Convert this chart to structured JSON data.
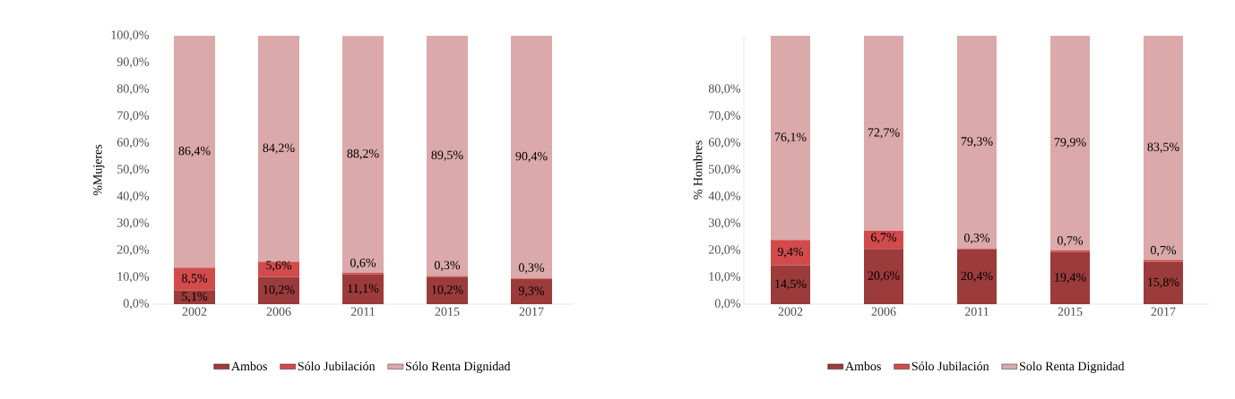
{
  "chart_data": [
    {
      "type": "bar",
      "stacked": true,
      "ylabel": "%Mujeres",
      "categories": [
        "2002",
        "2006",
        "2011",
        "2015",
        "2017"
      ],
      "ylim": [
        0,
        100
      ],
      "yticks": [
        {
          "value": 0,
          "label": "0,0%"
        },
        {
          "value": 10,
          "label": "10,0%"
        },
        {
          "value": 20,
          "label": "20,0%"
        },
        {
          "value": 30,
          "label": "30,0%"
        },
        {
          "value": 40,
          "label": "40,0%"
        },
        {
          "value": 50,
          "label": "50,0%"
        },
        {
          "value": 60,
          "label": "60,0%"
        },
        {
          "value": 70,
          "label": "70,0%"
        },
        {
          "value": 80,
          "label": "80,0%"
        },
        {
          "value": 90,
          "label": "90,0%"
        },
        {
          "value": 100,
          "label": "100,0%"
        }
      ],
      "legend": "bottom",
      "series": [
        {
          "name": "Ambos",
          "color": "#9c3b3b",
          "values": [
            5.1,
            10.2,
            11.1,
            10.2,
            9.3
          ],
          "value_labels": [
            "5,1%",
            "10,2%",
            "11,1%",
            "10,2%",
            "9,3%"
          ]
        },
        {
          "name": "Sólo Jubilación",
          "color": "#d24b4b",
          "values": [
            8.5,
            5.6,
            0.6,
            0.3,
            0.3
          ],
          "value_labels": [
            "8,5%",
            "5,6%",
            "0,6%",
            "0,3%",
            "0,3%"
          ]
        },
        {
          "name": "Sólo Renta Dignidad",
          "color": "#dba9a9",
          "values": [
            86.4,
            84.2,
            88.2,
            89.5,
            90.4
          ],
          "value_labels": [
            "86,4%",
            "84,2%",
            "88,2%",
            "89,5%",
            "90,4%"
          ]
        }
      ]
    },
    {
      "type": "bar",
      "stacked": true,
      "ylabel": "% Hombres",
      "categories": [
        "2002",
        "2006",
        "2011",
        "2015",
        "2017"
      ],
      "ylim": [
        0,
        100
      ],
      "yticks": [
        {
          "value": 0,
          "label": "0,0%"
        },
        {
          "value": 10,
          "label": "10,0%"
        },
        {
          "value": 20,
          "label": "20,0%"
        },
        {
          "value": 30,
          "label": "30,0%"
        },
        {
          "value": 40,
          "label": "40,0%"
        },
        {
          "value": 50,
          "label": "50,0%"
        },
        {
          "value": 60,
          "label": "60,0%"
        },
        {
          "value": 70,
          "label": "70,0%"
        },
        {
          "value": 80,
          "label": "80,0%"
        }
      ],
      "legend": "bottom",
      "series": [
        {
          "name": "Ambos",
          "color": "#9c3b3b",
          "values": [
            14.5,
            20.6,
            20.4,
            19.4,
            15.8
          ],
          "value_labels": [
            "14,5%",
            "20,6%",
            "20,4%",
            "19,4%",
            "15,8%"
          ]
        },
        {
          "name": "Sólo Jubilación",
          "color": "#d24b4b",
          "values": [
            9.4,
            6.7,
            0.3,
            0.7,
            0.7
          ],
          "value_labels": [
            "9,4%",
            "6,7%",
            "0,3%",
            "0,7%",
            "0,7%"
          ]
        },
        {
          "name": "Solo Renta Dignidad",
          "color": "#dba9a9",
          "values": [
            76.1,
            72.7,
            79.3,
            79.9,
            83.5
          ],
          "value_labels": [
            "76,1%",
            "72,7%",
            "79,3%",
            "79,9%",
            "83,5%"
          ]
        }
      ]
    }
  ]
}
